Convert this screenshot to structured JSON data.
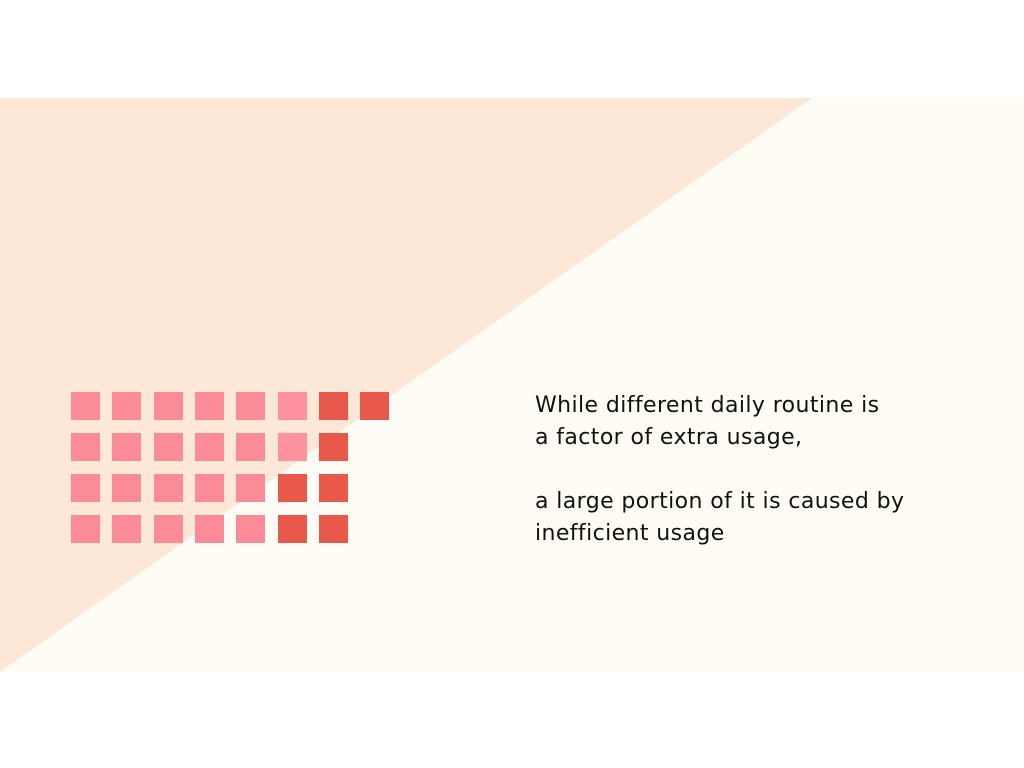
{
  "colors": {
    "page_background": "#ffffff",
    "peach_background": "#fde7d7",
    "cream_background": "#fefcf4",
    "pink": "#fc8b98",
    "light_pink": "#fe939f",
    "red": "#e8584b",
    "text": "#111111"
  },
  "waffle": {
    "rows": [
      [
        "pink",
        "pink",
        "pink",
        "pink",
        "pink",
        "light_pink",
        "red",
        "red"
      ],
      [
        "pink",
        "pink",
        "pink",
        "pink",
        "pink",
        "light_pink",
        "red"
      ],
      [
        "pink",
        "pink",
        "pink",
        "pink",
        "pink",
        "red",
        "red"
      ],
      [
        "pink",
        "pink",
        "pink",
        "pink",
        "pink",
        "red",
        "red"
      ]
    ]
  },
  "text": {
    "line1": "While different daily routine is",
    "line2": "a factor of extra usage,",
    "line3": "a large portion of it is caused by",
    "line4": "inefficient usage"
  }
}
